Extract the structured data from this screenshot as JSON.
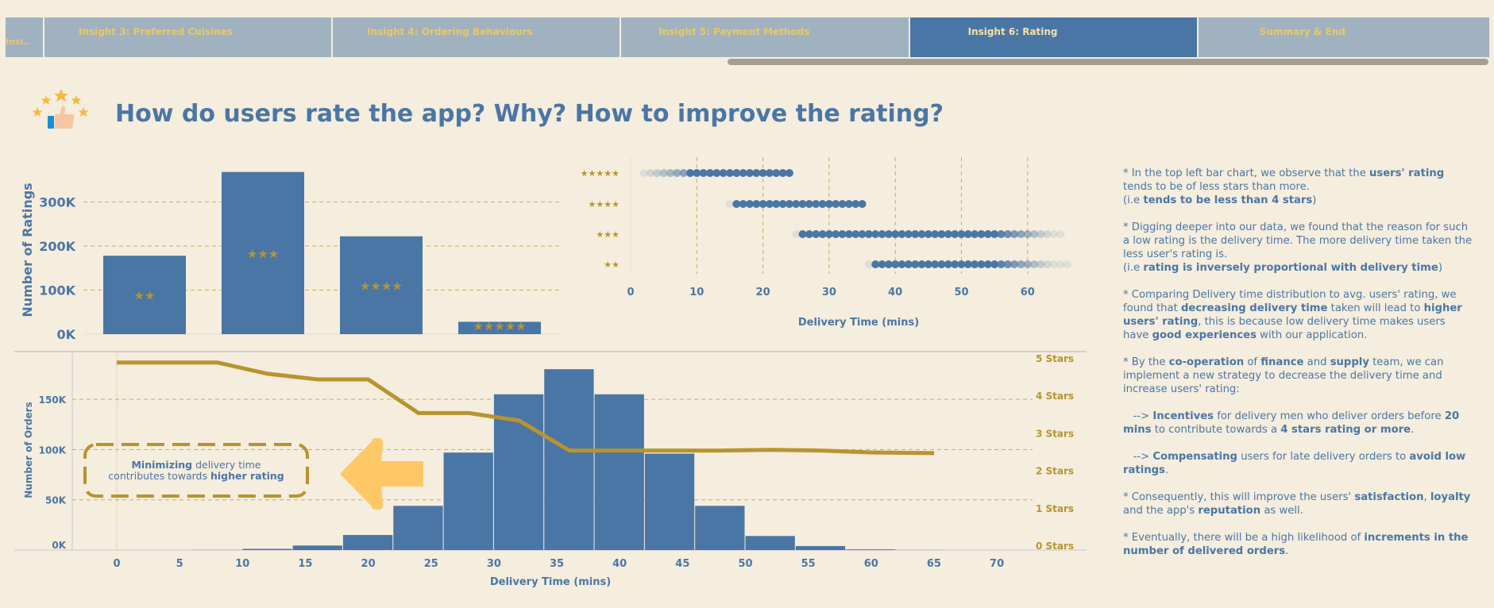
{
  "tabs": [
    {
      "label": "Insi..",
      "active": false
    },
    {
      "label": "Insight 3: Preferred Cuisines",
      "active": false
    },
    {
      "label": "Insight 4: Ordering Behaviours",
      "active": false
    },
    {
      "label": "Insight 5: Payment Methods",
      "active": false
    },
    {
      "label": "Insight 6: Rating",
      "active": true
    },
    {
      "label": "Summary & End",
      "active": false
    }
  ],
  "page_title": "How do users rate the app? Why? How to improve the rating?",
  "colors": {
    "bar": "#4a76a6",
    "gold": "#b8942e",
    "arrow": "#ffc866",
    "bg": "#f5eddd"
  },
  "chart_data": [
    {
      "type": "bar",
      "categories": [
        "★★",
        "★★★",
        "★★★★",
        "★★★★★"
      ],
      "values": [
        178000,
        368000,
        222000,
        28000
      ],
      "ylabel": "Number of Ratings",
      "yticks": [
        "0K",
        "100K",
        "200K",
        "300K"
      ],
      "ylim": [
        0,
        380000
      ]
    },
    {
      "type": "scatter",
      "categories": [
        "★★★★★",
        "★★★★",
        "★★★",
        "★★"
      ],
      "ranges": [
        [
          2,
          24
        ],
        [
          15,
          35
        ],
        [
          25,
          65
        ],
        [
          36,
          66
        ]
      ],
      "xlabel": "Delivery Time (mins)",
      "xticks": [
        "0",
        "10",
        "20",
        "30",
        "40",
        "50",
        "60"
      ],
      "xlim": [
        -6,
        66
      ]
    },
    {
      "type": "bar",
      "histogram_edges": [
        -2,
        2,
        6,
        10,
        14,
        18,
        22,
        26,
        30,
        34,
        38,
        42,
        46,
        50,
        54,
        58,
        62,
        66,
        70
      ],
      "values": [
        0,
        0,
        200,
        1200,
        4500,
        15000,
        44000,
        97000,
        155000,
        180000,
        155000,
        96000,
        44000,
        14000,
        4000,
        700,
        100,
        0
      ],
      "xlabel": "Delivery Time (mins)",
      "ylabel": "Number of Orders",
      "xticks": [
        "0",
        "5",
        "10",
        "15",
        "20",
        "25",
        "30",
        "35",
        "40",
        "45",
        "50",
        "55",
        "60",
        "65",
        "70"
      ],
      "yticks": [
        "0K",
        "50K",
        "100K",
        "150K"
      ],
      "ylim": [
        0,
        188000
      ],
      "line": {
        "x": [
          0,
          8,
          12,
          16,
          20,
          24,
          28,
          32,
          36,
          40,
          44,
          48,
          52,
          56,
          60,
          65
        ],
        "y": [
          4.9,
          4.9,
          4.6,
          4.45,
          4.45,
          3.55,
          3.55,
          3.35,
          2.55,
          2.55,
          2.55,
          2.55,
          2.57,
          2.55,
          2.5,
          2.48
        ],
        "right_ticks": [
          "0 Stars",
          "1 Stars",
          "2 Stars",
          "3 Stars",
          "4 Stars",
          "5 Stars"
        ]
      },
      "annotation": {
        "strong1": "Minimizing",
        "text1": " delivery time",
        "text2": "contributes towards ",
        "strong2": "higher rating"
      }
    }
  ],
  "notes": [
    [
      "* In the top left bar chart, we observe that the ",
      "users' rating",
      " tends to be of less stars than more.\n(i.e ",
      "tends to be less than 4 stars",
      ")"
    ],
    [
      "* Digging deeper into our data, we found that the reason for such a low rating is the delivery time. The more delivery time taken the less user's rating is.\n(i.e ",
      "rating is inversely proportional with delivery time",
      ")"
    ],
    [
      "* Comparing Delivery time distribution to avg. users' rating, we found that ",
      "decreasing delivery time",
      " taken will lead to ",
      "higher users' rating",
      ", this is because low delivery time makes users have ",
      "good experiences",
      " with our application."
    ],
    [
      "* By the ",
      "co-operation",
      " of ",
      "finance",
      " and ",
      "supply",
      " team, we can implement a new strategy to decrease the delivery time and increase users' rating:"
    ],
    [
      "   -->  ",
      "Incentives",
      " for delivery men who deliver orders before ",
      "20 mins",
      " to contribute towards a ",
      "4 stars rating or more",
      "."
    ],
    [
      "   -->  ",
      "Compensating",
      " users for late delivery orders to ",
      "avoid low ratings",
      "."
    ],
    [
      "* Consequently, this will improve the users' ",
      "satisfaction",
      ", ",
      "loyalty",
      " and the app's ",
      "reputation",
      " as well."
    ],
    [
      "* Eventually, there will be a high likelihood of ",
      "increments in the number of delivered orders",
      "."
    ]
  ]
}
